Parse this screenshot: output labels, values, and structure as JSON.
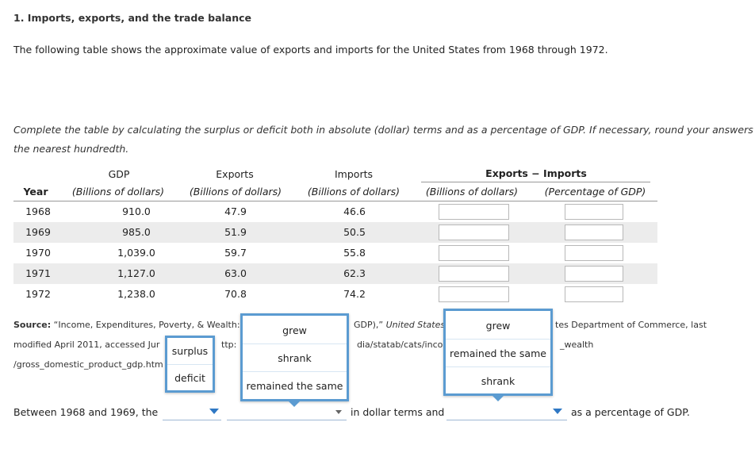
{
  "title": "1. Imports, exports, and the trade balance",
  "intro": "The following table shows the approximate value of exports and imports for the United States from 1968 through 1972.",
  "instructions_line1": "Complete the table by calculating the surplus or deficit both in absolute (dollar) terms and as a percentage of GDP. If necessary, round your answers to",
  "instructions_line2": "the nearest hundredth.",
  "table": {
    "group_header": "Exports − Imports",
    "headers": {
      "year": "Year",
      "gdp": "GDP",
      "gdp_unit": "(Billions of dollars)",
      "exports": "Exports",
      "exports_unit": "(Billions of dollars)",
      "imports": "Imports",
      "imports_unit": "(Billions of dollars)",
      "diff_unit": "(Billions of dollars)",
      "pct_unit": "(Percentage of GDP)"
    },
    "rows": [
      {
        "year": "1968",
        "gdp": "910.0",
        "exports": "47.9",
        "imports": "46.6"
      },
      {
        "year": "1969",
        "gdp": "985.0",
        "exports": "51.9",
        "imports": "50.5"
      },
      {
        "year": "1970",
        "gdp": "1,039.0",
        "exports": "59.7",
        "imports": "55.8"
      },
      {
        "year": "1971",
        "gdp": "1,127.0",
        "exports": "63.0",
        "imports": "62.3"
      },
      {
        "year": "1972",
        "gdp": "1,238.0",
        "exports": "70.8",
        "imports": "74.2"
      }
    ]
  },
  "source": {
    "label": "Source:",
    "l1_a": "“Income, Expenditures, Poverty, & Wealth:",
    "l1_b": "GDP),” ",
    "l1_c": "United States",
    "l1_d": "tes Department of Commerce, last",
    "l2_a": "modified April 2011, accessed Jur",
    "l2_b": "ttp:",
    "l2_c": "dia/statab/cats/inco",
    "l2_d": "_wealth",
    "l3_a": "/gross_domestic_product_gdp.htm"
  },
  "dropdown1": {
    "options": [
      "surplus",
      "deficit"
    ]
  },
  "dropdown2": {
    "options": [
      "grew",
      "shrank",
      "remained the same"
    ]
  },
  "dropdown3": {
    "options": [
      "grew",
      "remained the same",
      "shrank"
    ]
  },
  "sentence": {
    "part1": "Between 1968 and 1969, the",
    "part2": "in dollar terms and",
    "part3": "as a percentage of GDP."
  },
  "colors": {
    "accent": "#5b9bd1",
    "row_shade": "#ececec"
  }
}
